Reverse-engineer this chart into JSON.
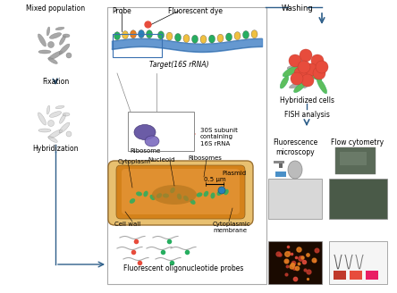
{
  "bg_color": "#ffffff",
  "arrow_color": "#2e5f8a",
  "left_labels": [
    "Mixed population",
    "Fixation",
    "Hybridization"
  ],
  "right_labels": [
    "Washing",
    "Hybridized cells",
    "FISH analysis",
    "Fluorescence\nmicroscopy",
    "Flow cytometry"
  ],
  "center_labels": [
    "Probe",
    "Fluorescent dye",
    "Target(16S rRNA)",
    "Ribosome",
    "30S subunit\ncontaining\n16S rRNA",
    "Cytoplasm",
    "Nucleoid",
    "Ribosomes",
    "Plasmid",
    "0.5 μm",
    "Cell wall",
    "Cytoplasmic\nmembrane",
    "Fluorescent oligonucleotide probes"
  ],
  "bump_colors": [
    "#27ae60",
    "#f0c040",
    "#e67e22",
    "#2980b9",
    "#27ae60",
    "#f0c040",
    "#e67e22"
  ],
  "cell_outer": "#c8870a",
  "cell_inner": "#d4922a",
  "cell_nucleoid": "#b8720a",
  "ribosome_color": "#5b4a9c",
  "probe_red": "#e74c3c",
  "probe_green": "#27ae60",
  "bacteria_gray": "#aaaaaa",
  "bacteria_lgray": "#cccccc",
  "bacteria_green": "#5dbe5d",
  "bacteria_red": "#e74c3c",
  "font_size": 5.5
}
